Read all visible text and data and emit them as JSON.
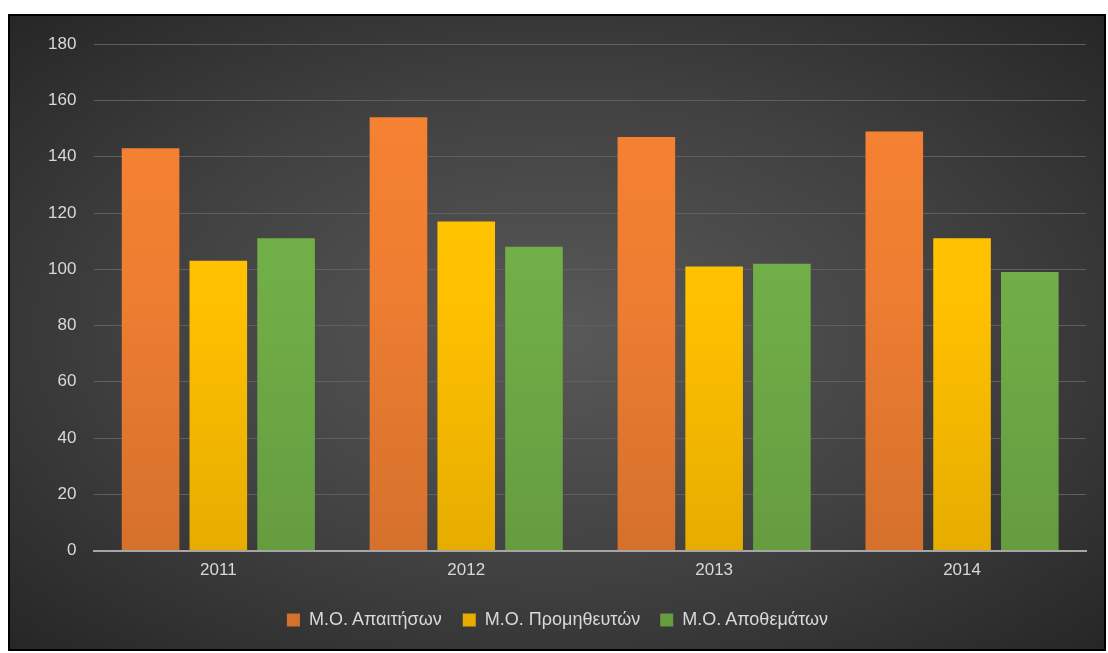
{
  "chart_data": {
    "type": "bar",
    "categories": [
      "2011",
      "2012",
      "2013",
      "2014"
    ],
    "series": [
      {
        "name": "Μ.Ο. Απαιτήσων",
        "color": "#ed7d31",
        "values": [
          143,
          154,
          147,
          149
        ]
      },
      {
        "name": "Μ.Ο. Προμηθευτών",
        "color": "#ffc000",
        "values": [
          103,
          117,
          101,
          111
        ]
      },
      {
        "name": "Μ.Ο. Αποθεμάτων",
        "color": "#70ad47",
        "values": [
          111,
          108,
          102,
          99
        ]
      }
    ],
    "ylim": [
      0,
      180
    ],
    "yticks": [
      0,
      20,
      40,
      60,
      80,
      100,
      120,
      140,
      160,
      180
    ],
    "grid": "y",
    "legend": "bottom"
  }
}
